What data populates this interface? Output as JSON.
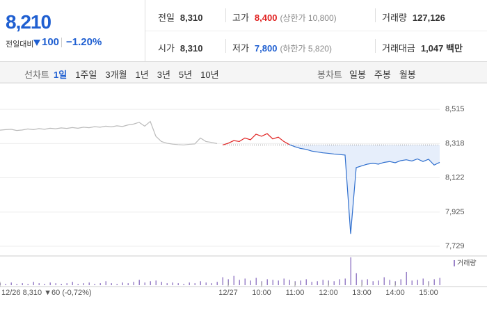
{
  "header": {
    "price": "8,210",
    "change_label": "전일대비",
    "change": "100",
    "rate": "−1.20%"
  },
  "stats": [
    {
      "label": "전일",
      "value": "8,310"
    },
    {
      "label": "고가",
      "value": "8,400",
      "note": "(상한가 10,800)"
    },
    {
      "label": "거래량",
      "value": "127,126"
    },
    {
      "label": "시가",
      "value": "8,310"
    },
    {
      "label": "저가",
      "value": "7,800",
      "note": "(하한가 5,820)"
    },
    {
      "label": "거래대금",
      "value": "1,047 백만"
    }
  ],
  "tabs": {
    "line_label": "선차트",
    "periods": [
      "1일",
      "1주일",
      "3개월",
      "1년",
      "3년",
      "5년",
      "10년"
    ],
    "candle_label": "봉차트",
    "candles": [
      "일봉",
      "주봉",
      "월봉"
    ]
  },
  "chart_data": {
    "type": "line",
    "categories": [
      "12/26 8,310 ▼60 (-0,72%)",
      null,
      null,
      null,
      null,
      null,
      null,
      null,
      null,
      null,
      null,
      null,
      null,
      null,
      null,
      null,
      null,
      null,
      null,
      null,
      null,
      null,
      null,
      null,
      null,
      null,
      null,
      null,
      null,
      null,
      null,
      null,
      null,
      null,
      null,
      null,
      null,
      null,
      null,
      null,
      null,
      "12/27",
      null,
      null,
      null,
      null,
      null,
      "10:00",
      null,
      null,
      null,
      null,
      null,
      "11:00",
      null,
      null,
      null,
      null,
      null,
      "12:00",
      null,
      null,
      null,
      null,
      null,
      "13:00",
      null,
      null,
      null,
      null,
      null,
      "14:00",
      null,
      null,
      null,
      null,
      null,
      "15:00",
      null,
      null
    ],
    "series": [
      {
        "color": "#bbbbbb",
        "values": [
          8395,
          8398,
          8400,
          8393,
          8396,
          8402,
          8398,
          8404,
          8400,
          8406,
          8403,
          8408,
          8405,
          8410,
          8406,
          8412,
          8409,
          8415,
          8412,
          8418,
          8414,
          8420,
          8416,
          8425,
          8430,
          8440,
          8418,
          8445,
          8360,
          8330,
          8320,
          8315,
          8312,
          8310,
          8314,
          8316,
          8350,
          8330,
          8325,
          8318,
          null,
          null,
          null,
          null,
          null,
          null,
          null,
          null,
          null,
          null,
          null,
          null,
          null,
          null,
          null,
          null,
          null,
          null,
          null,
          null,
          null,
          null,
          null,
          null,
          null,
          null,
          null,
          null,
          null,
          null,
          null,
          null,
          null,
          null,
          null,
          null,
          null,
          null,
          null,
          null
        ]
      },
      {
        "color": "#e0201f",
        "values": [
          null,
          null,
          null,
          null,
          null,
          null,
          null,
          null,
          null,
          null,
          null,
          null,
          null,
          null,
          null,
          null,
          null,
          null,
          null,
          null,
          null,
          null,
          null,
          null,
          null,
          null,
          null,
          null,
          null,
          null,
          null,
          null,
          null,
          null,
          null,
          null,
          null,
          null,
          null,
          null,
          8310,
          8320,
          8335,
          8330,
          8350,
          8340,
          8372,
          8360,
          8375,
          8345,
          8355,
          8330,
          8312,
          null,
          null,
          null,
          null,
          null,
          null,
          null,
          null,
          null,
          null,
          null,
          null,
          null,
          null,
          null,
          null,
          null,
          null,
          null,
          null,
          null,
          null,
          null,
          null,
          null,
          null,
          null
        ]
      },
      {
        "color": "#2f6fce",
        "fill": "#e6eefb",
        "values": [
          null,
          null,
          null,
          null,
          null,
          null,
          null,
          null,
          null,
          null,
          null,
          null,
          null,
          null,
          null,
          null,
          null,
          null,
          null,
          null,
          null,
          null,
          null,
          null,
          null,
          null,
          null,
          null,
          null,
          null,
          null,
          null,
          null,
          null,
          null,
          null,
          null,
          null,
          null,
          null,
          null,
          null,
          null,
          null,
          null,
          null,
          null,
          null,
          null,
          null,
          null,
          null,
          8312,
          8300,
          8290,
          8285,
          8275,
          8270,
          8265,
          8262,
          8258,
          8255,
          8252,
          7800,
          8180,
          8190,
          8200,
          8205,
          8200,
          8210,
          8215,
          8208,
          8220,
          8225,
          8218,
          8230,
          8215,
          8228,
          8195,
          8210
        ]
      }
    ],
    "baseline": 8310,
    "ylim": [
      7685,
      8643
    ],
    "yticks": [
      {
        "value": 8515,
        "label": "8,515"
      },
      {
        "value": 8318,
        "label": "8,318"
      },
      {
        "value": 8122,
        "label": "8,122"
      },
      {
        "value": 7925,
        "label": "7,925"
      },
      {
        "value": 7729,
        "label": "7,729"
      }
    ],
    "grid": true,
    "volume_label": "거래량",
    "volume_color": "#9a82c8",
    "volume": [
      3,
      2,
      4,
      2,
      3,
      2,
      5,
      3,
      2,
      4,
      3,
      2,
      3,
      5,
      2,
      3,
      4,
      2,
      3,
      6,
      3,
      2,
      4,
      3,
      5,
      8,
      4,
      6,
      7,
      5,
      3,
      4,
      3,
      2,
      4,
      3,
      6,
      4,
      3,
      5,
      12,
      9,
      14,
      8,
      10,
      7,
      11,
      6,
      9,
      8,
      7,
      10,
      8,
      6,
      7,
      9,
      5,
      6,
      8,
      7,
      6,
      9,
      10,
      42,
      18,
      8,
      9,
      6,
      7,
      12,
      8,
      6,
      9,
      20,
      7,
      8,
      10,
      6,
      9,
      11
    ]
  }
}
